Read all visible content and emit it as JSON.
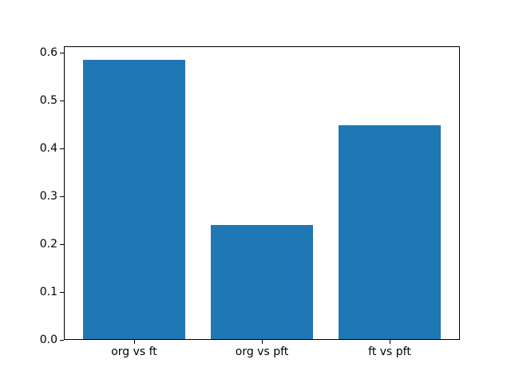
{
  "chart_data": {
    "type": "bar",
    "title": "",
    "xlabel": "",
    "ylabel": "",
    "categories": [
      "org vs ft",
      "org vs pft",
      "ft vs pft"
    ],
    "values": [
      0.586,
      0.24,
      0.449
    ],
    "yticks": [
      0.0,
      0.1,
      0.2,
      0.3,
      0.4,
      0.5,
      0.6
    ],
    "ytick_labels": [
      "0.0",
      "0.1",
      "0.2",
      "0.3",
      "0.4",
      "0.5",
      "0.6"
    ],
    "ylim": [
      0,
      0.614
    ],
    "bar_width_fraction": 0.8,
    "x_range": [
      -0.55,
      2.55
    ],
    "bar_color": "#1f77b4",
    "axis_color": "#000000",
    "background_color": "#ffffff",
    "grid": false,
    "legend": "none"
  }
}
